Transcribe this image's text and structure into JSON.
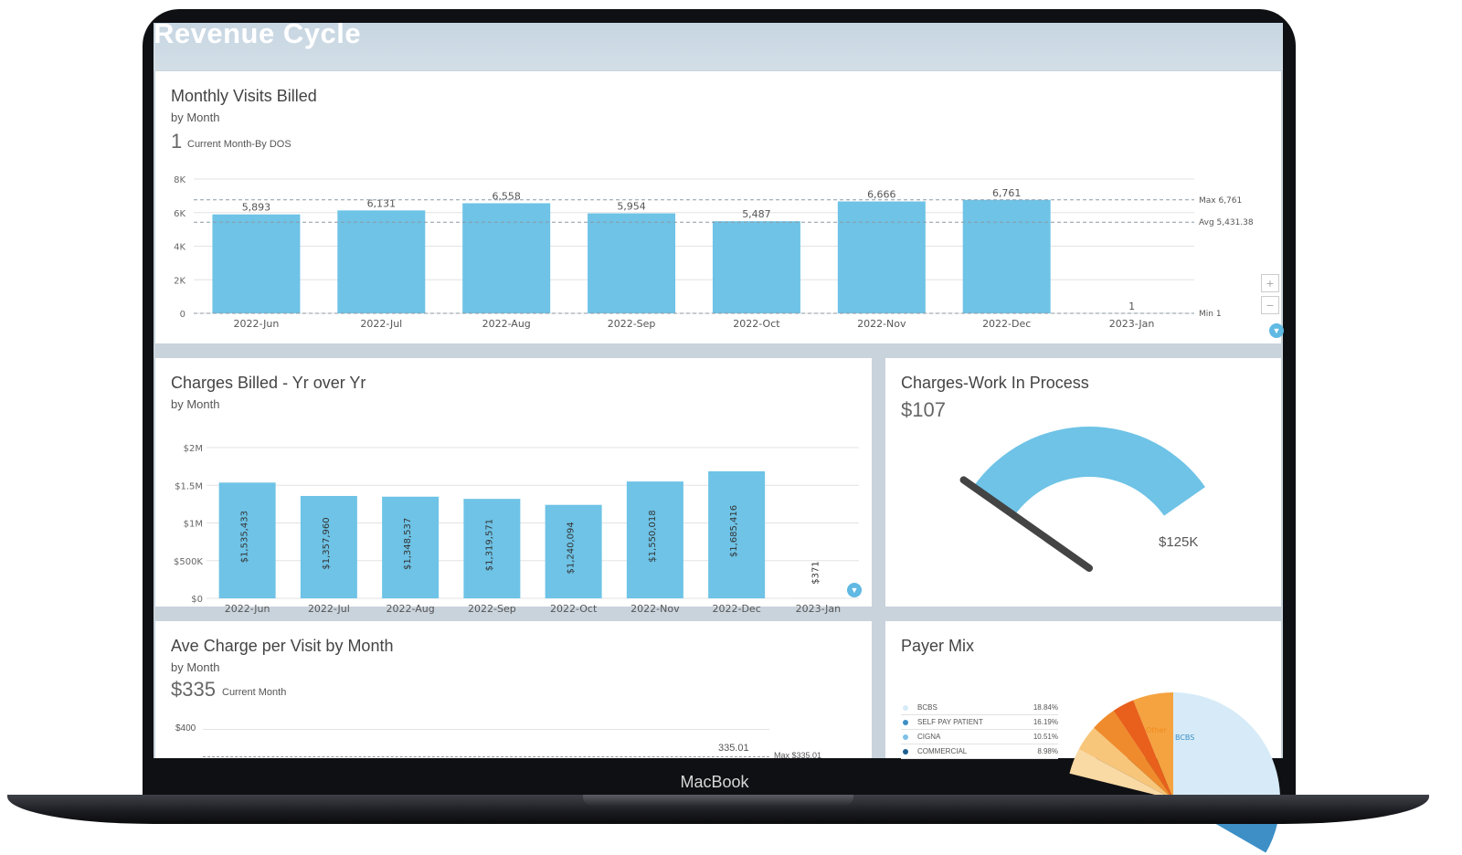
{
  "dashboard_title": "Revenue Cycle",
  "device_label": "MacBook",
  "monthly_visits": {
    "title": "Monthly Visits Billed",
    "subtitle": "by Month",
    "kpi_value": "1",
    "kpi_label": "Current Month-By DOS",
    "chart_data": {
      "type": "bar",
      "categories": [
        "2022-Jun",
        "2022-Jul",
        "2022-Aug",
        "2022-Sep",
        "2022-Oct",
        "2022-Nov",
        "2022-Dec",
        "2023-Jan"
      ],
      "values": [
        5893,
        6131,
        6558,
        5954,
        5487,
        6666,
        6761,
        1
      ],
      "value_labels": [
        "5,893",
        "6,131",
        "6,558",
        "5,954",
        "5,487",
        "6,666",
        "6,761",
        "1"
      ],
      "yticks": [
        "0",
        "2K",
        "4K",
        "6K",
        "8K"
      ],
      "ylim": [
        0,
        8000
      ],
      "reference_lines": [
        {
          "label": "Max 6,761",
          "value": 6761
        },
        {
          "label": "Avg 5,431.38",
          "value": 5431.38
        },
        {
          "label": "Min 1",
          "value": 1
        }
      ],
      "bar_color": "#6ec3e6",
      "grid": true
    }
  },
  "charges_billed": {
    "title": "Charges Billed - Yr over Yr",
    "subtitle": "by Month",
    "chart_data": {
      "type": "bar",
      "categories": [
        "2022-Jun",
        "2022-Jul",
        "2022-Aug",
        "2022-Sep",
        "2022-Oct",
        "2022-Nov",
        "2022-Dec",
        "2023-Jan"
      ],
      "values": [
        1535433,
        1357960,
        1348537,
        1319571,
        1240094,
        1550018,
        1685416,
        371
      ],
      "value_labels": [
        "$1,535,433",
        "$1,357,960",
        "$1,348,537",
        "$1,319,571",
        "$1,240,094",
        "$1,550,018",
        "$1,685,416",
        "$371"
      ],
      "yticks": [
        "$0",
        "$500K",
        "$1M",
        "$1.5M",
        "$2M"
      ],
      "ylim": [
        0,
        2000000
      ],
      "bar_color": "#6ec3e6",
      "grid": true
    }
  },
  "wip": {
    "title": "Charges-Work In Process",
    "value": "$107",
    "gauge_max_label": "$125K",
    "gauge_value": 107,
    "gauge_max": 125000,
    "gauge_color": "#6ec3e6"
  },
  "ave_charge": {
    "title": "Ave Charge per Visit by Month",
    "subtitle": "by Month",
    "kpi_value": "$335",
    "kpi_label": "Current Month",
    "ytick_top": "$400",
    "last_value_label": "335.01",
    "max_label": "Max $335.01"
  },
  "payer_mix": {
    "title": "Payer Mix",
    "legend": [
      {
        "name": "BCBS",
        "pct": "18.84%",
        "color": "#d6ebf7"
      },
      {
        "name": "SELF PAY PATIENT",
        "pct": "16.19%",
        "color": "#3d8fc6"
      },
      {
        "name": "CIGNA",
        "pct": "10.51%",
        "color": "#7fc0e6"
      },
      {
        "name": "COMMERCIAL",
        "pct": "8.98%",
        "color": "#1f5e8f"
      }
    ],
    "pie_labels": {
      "other": "Other",
      "bcbs": "BCBS"
    },
    "colors": {
      "bcbs": "#d6ebf7",
      "other": "#f4a340",
      "accent1": "#e8601c",
      "accent2": "#f7c67a",
      "accent3": "#ef8b2c"
    }
  }
}
